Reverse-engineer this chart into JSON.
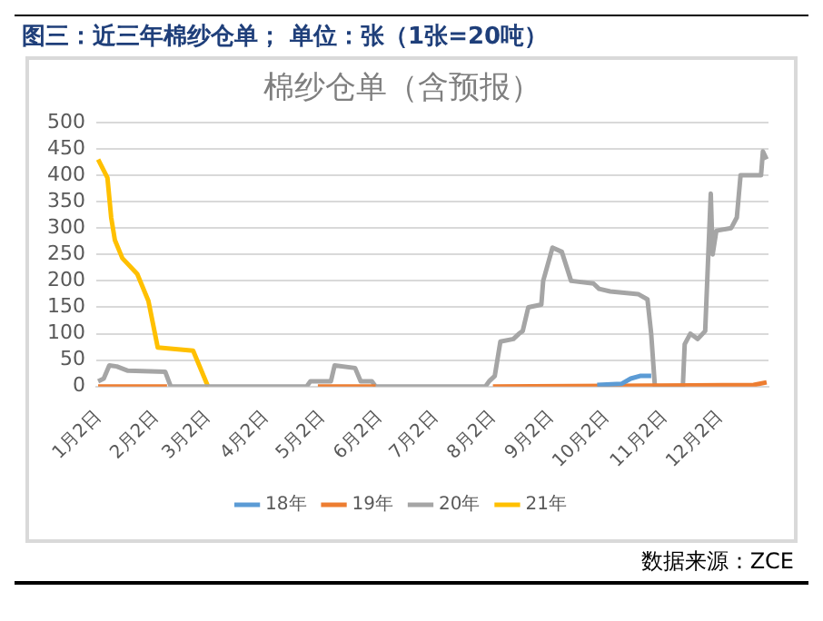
{
  "chart_data": {
    "type": "line",
    "title": "图三：近三年棉纱仓单； 单位：张（1张=20吨）",
    "subtitle": "棉纱仓单（含预报）",
    "annotations": [
      "数据来源：ZCE"
    ],
    "xlim": [
      "--01-01",
      "--12-28"
    ],
    "xticks": [
      {
        "value": "--01-02",
        "label": "1月2日"
      },
      {
        "value": "--02-02",
        "label": "2月2日"
      },
      {
        "value": "--03-02",
        "label": "3月2日"
      },
      {
        "value": "--04-02",
        "label": "4月2日"
      },
      {
        "value": "--05-02",
        "label": "5月2日"
      },
      {
        "value": "--06-02",
        "label": "6月2日"
      },
      {
        "value": "--07-02",
        "label": "7月2日"
      },
      {
        "value": "--08-02",
        "label": "8月2日"
      },
      {
        "value": "--09-02",
        "label": "9月2日"
      },
      {
        "value": "--10-02",
        "label": "10月2日"
      },
      {
        "value": "--11-02",
        "label": "11月2日"
      },
      {
        "value": "--12-02",
        "label": "12月2日"
      }
    ],
    "ylim": [
      0,
      500
    ],
    "yticks": [
      0,
      50,
      100,
      150,
      200,
      250,
      300,
      350,
      400,
      450,
      500
    ],
    "grid": "y",
    "legend": "bottom",
    "marker": "none",
    "line_style": "solid",
    "series": [
      {
        "name": "18年",
        "color": "#5b9bd5",
        "x": [
          "--09-27",
          "--10-10",
          "--10-15",
          "--10-20",
          "--10-26"
        ],
        "values": [
          3,
          5,
          15,
          20,
          20
        ]
      },
      {
        "name": "19年",
        "color": "#ed7d31",
        "x": [
          "--01-02",
          "--02-08",
          "--03-15",
          "--04-30",
          "--05-31",
          "--07-01",
          "--08-02",
          "--12-20",
          "--12-27"
        ],
        "values": [
          0,
          0,
          null,
          0,
          0,
          null,
          0,
          3,
          8
        ]
      },
      {
        "name": "20年",
        "color": "#a5a5a5",
        "x": [
          "--01-02",
          "--01-05",
          "--01-08",
          "--01-12",
          "--01-18",
          "--02-07",
          "--02-10",
          "--04-24",
          "--04-26",
          "--05-07",
          "--05-09",
          "--05-20",
          "--05-23",
          "--05-29",
          "--05-31",
          "--07-29",
          "--07-31",
          "--08-03",
          "--08-06",
          "--08-13",
          "--08-16",
          "--08-18",
          "--08-21",
          "--08-28",
          "--08-29",
          "--09-03",
          "--09-08",
          "--09-13",
          "--09-25",
          "--09-28",
          "--10-04",
          "--10-19",
          "--10-24",
          "--10-26",
          "--10-28",
          "--11-12",
          "--11-13",
          "--11-16",
          "--11-20",
          "--11-24",
          "--11-27",
          "--11-28",
          "--11-30",
          "--12-08",
          "--12-11",
          "--12-13",
          "--12-24",
          "--12-25",
          "--12-27"
        ],
        "values": [
          10,
          15,
          40,
          38,
          30,
          28,
          0,
          0,
          10,
          10,
          40,
          35,
          10,
          10,
          0,
          0,
          10,
          20,
          85,
          90,
          100,
          105,
          150,
          155,
          200,
          263,
          255,
          200,
          195,
          185,
          180,
          175,
          165,
          100,
          0,
          0,
          80,
          100,
          90,
          105,
          365,
          250,
          295,
          300,
          320,
          400,
          400,
          445,
          430
        ]
      },
      {
        "name": "21年",
        "color": "#ffc000",
        "x": [
          "--01-02",
          "--01-07",
          "--01-09",
          "--01-11",
          "--01-15",
          "--01-23",
          "--01-29",
          "--02-03",
          "--02-22",
          "--03-02"
        ],
        "values": [
          430,
          395,
          320,
          277,
          243,
          213,
          162,
          74,
          68,
          0
        ]
      }
    ]
  }
}
